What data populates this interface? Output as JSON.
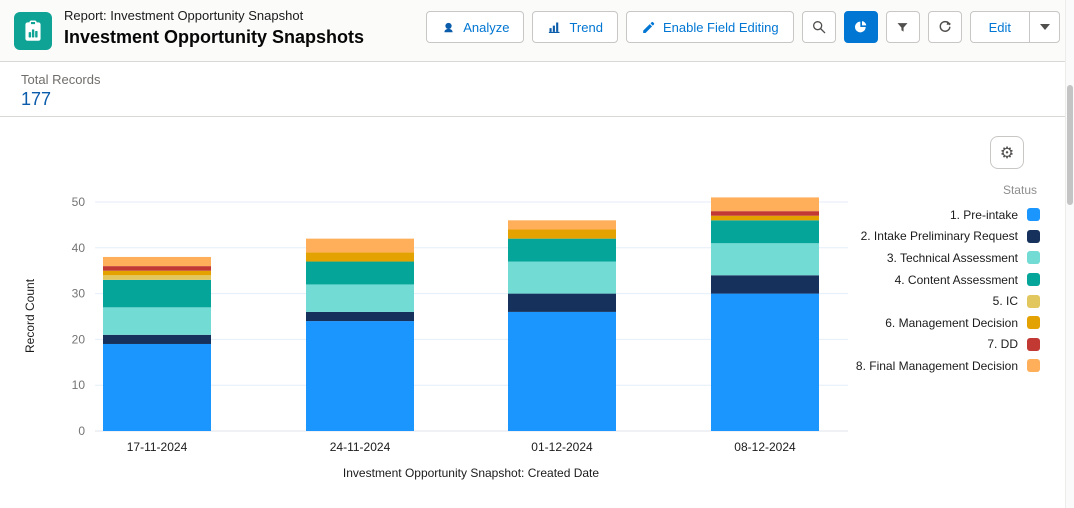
{
  "header": {
    "report_type_label": "Report: Investment Opportunity Snapshot",
    "title": "Investment Opportunity Snapshots",
    "buttons": {
      "analyze": "Analyze",
      "trend": "Trend",
      "enable_field_editing": "Enable Field Editing",
      "edit": "Edit"
    }
  },
  "summary": {
    "total_records_label": "Total Records",
    "total_records_value": "177"
  },
  "chart_data": {
    "type": "bar",
    "stacked": true,
    "xlabel": "Investment Opportunity Snapshot: Created Date",
    "ylabel": "Record Count",
    "ylim": [
      0,
      50
    ],
    "yticks": [
      0,
      10,
      20,
      30,
      40,
      50
    ],
    "grid": true,
    "legend_title": "Status",
    "legend_position": "right",
    "categories": [
      "17-11-2024",
      "24-11-2024",
      "01-12-2024",
      "08-12-2024"
    ],
    "series": [
      {
        "name": "1. Pre-intake",
        "color": "#1B96FF",
        "values": [
          19,
          24,
          26,
          30
        ]
      },
      {
        "name": "2. Intake Preliminary Request",
        "color": "#16325C",
        "values": [
          2,
          2,
          4,
          4
        ]
      },
      {
        "name": "3. Technical Assessment",
        "color": "#71DBD4",
        "values": [
          6,
          6,
          7,
          7
        ]
      },
      {
        "name": "4. Content Assessment",
        "color": "#06A59A",
        "values": [
          6,
          5,
          5,
          5
        ]
      },
      {
        "name": "5. IC",
        "color": "#E2C75E",
        "values": [
          1,
          0,
          0,
          0
        ]
      },
      {
        "name": "6. Management Decision",
        "color": "#E4A201",
        "values": [
          1,
          2,
          2,
          1
        ]
      },
      {
        "name": "7. DD",
        "color": "#C23934",
        "values": [
          1,
          0,
          0,
          1
        ]
      },
      {
        "name": "8. Final Management Decision",
        "color": "#FFAF5A",
        "values": [
          2,
          3,
          2,
          3
        ]
      }
    ],
    "bar_totals": [
      38,
      42,
      46,
      51
    ]
  }
}
